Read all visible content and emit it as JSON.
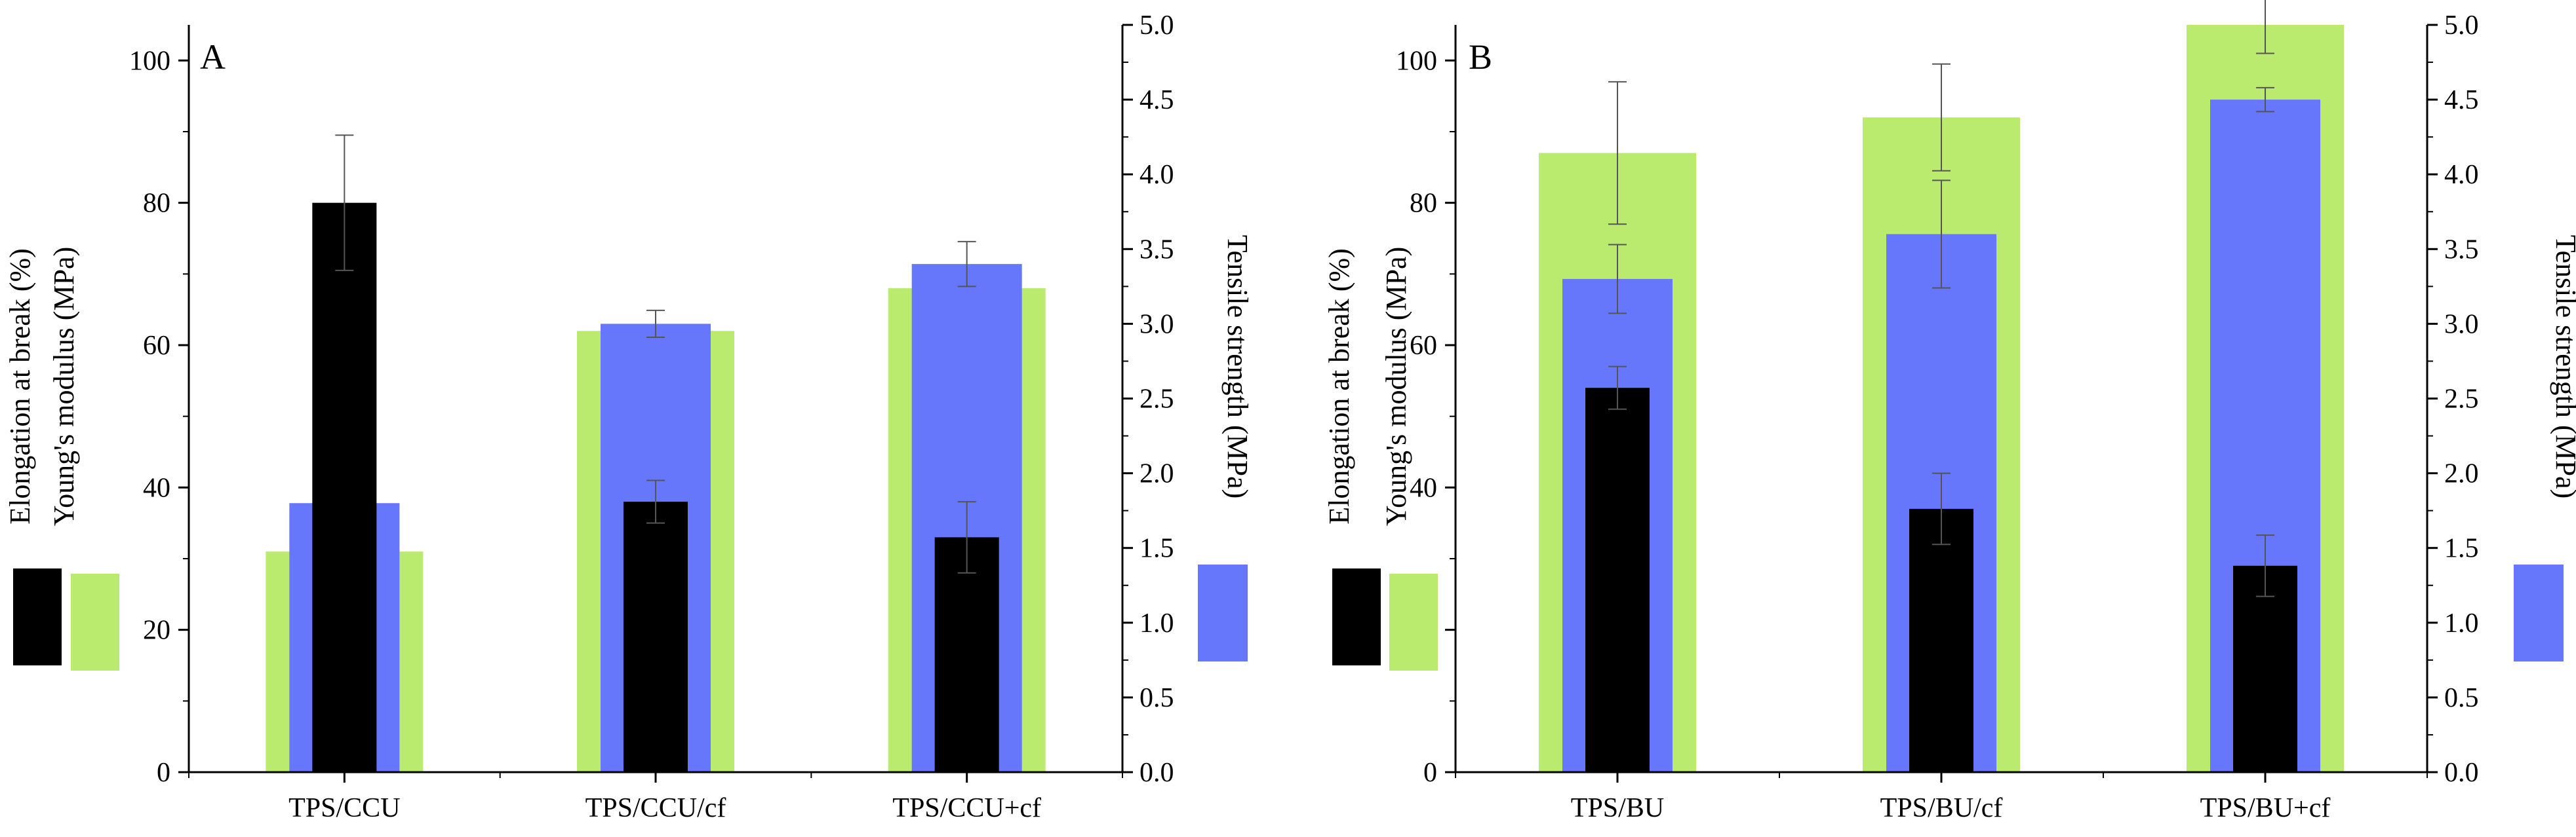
{
  "figure": {
    "colors": {
      "elongation": "#000000",
      "youngs_modulus": "#bbeb6e",
      "tensile_strength": "#6677fb",
      "error_bar": "#555555",
      "axis": "#000000"
    }
  },
  "chart_data": [
    {
      "type": "bar",
      "panel_label": "A",
      "categories": [
        "TPS/CCU",
        "TPS/CCU/cf",
        "TPS/CCU+cf"
      ],
      "left_axis_labels": [
        "Elongation at break (%)",
        "Young's modulus (MPa)"
      ],
      "right_axis_label": "Tensile strength (MPa)",
      "left_ylim": [
        0,
        105
      ],
      "right_ylim": [
        0,
        5
      ],
      "left_ticks": [
        0,
        20,
        40,
        60,
        80,
        100
      ],
      "right_ticks": [
        0.0,
        0.5,
        1.0,
        1.5,
        2.0,
        2.5,
        3.0,
        3.5,
        4.0,
        4.5,
        5.0
      ],
      "series": [
        {
          "name": "Young's modulus (MPa)",
          "axis": "left",
          "color": "#bbeb6e",
          "values": [
            31,
            62,
            68
          ],
          "errors": [
            null,
            null,
            null
          ]
        },
        {
          "name": "Tensile strength (MPa)",
          "axis": "right",
          "color": "#6677fb",
          "values": [
            1.8,
            3.0,
            3.4
          ],
          "errors": [
            null,
            0.09,
            0.15
          ]
        },
        {
          "name": "Elongation at break (%)",
          "axis": "left",
          "color": "#000000",
          "values": [
            80,
            38,
            33
          ],
          "errors": [
            9.5,
            3,
            5
          ]
        }
      ]
    },
    {
      "type": "bar",
      "panel_label": "B",
      "categories": [
        "TPS/BU",
        "TPS/BU/cf",
        "TPS/BU+cf"
      ],
      "left_axis_labels": [
        "Elongation at break (%)",
        "Young's modulus (MPa)"
      ],
      "right_axis_label": "Tensile strength (MPa)",
      "left_ylim": [
        0,
        105
      ],
      "right_ylim": [
        0,
        5
      ],
      "left_ticks": [
        0,
        20,
        40,
        60,
        80,
        100
      ],
      "right_ticks": [
        0.0,
        0.5,
        1.0,
        1.5,
        2.0,
        2.5,
        3.0,
        3.5,
        4.0,
        4.5,
        5.0
      ],
      "series": [
        {
          "name": "Young's modulus (MPa)",
          "axis": "left",
          "color": "#bbeb6e",
          "values": [
            87,
            92,
            105
          ],
          "errors": [
            10,
            7.5,
            4
          ]
        },
        {
          "name": "Tensile strength (MPa)",
          "axis": "right",
          "color": "#6677fb",
          "values": [
            3.3,
            3.6,
            4.5
          ],
          "errors": [
            0.23,
            0.36,
            0.08
          ]
        },
        {
          "name": "Elongation at break (%)",
          "axis": "left",
          "color": "#000000",
          "values": [
            54,
            37,
            29
          ],
          "errors": [
            3,
            5,
            4.3
          ]
        }
      ]
    }
  ]
}
